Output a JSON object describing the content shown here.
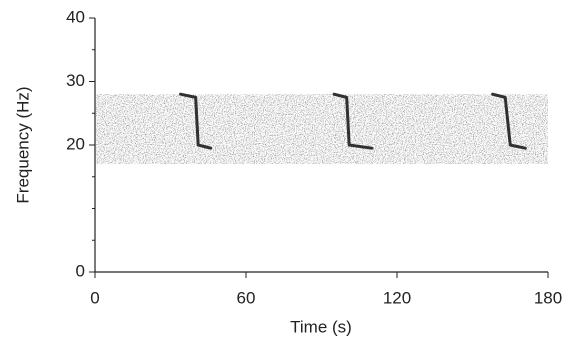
{
  "chart_data": {
    "type": "spectrogram",
    "xlabel": "Time (s)",
    "ylabel": "Frequency (Hz)",
    "xlim": [
      0,
      180
    ],
    "xticks": [
      0,
      60,
      120,
      180
    ],
    "ylim": [
      0,
      40
    ],
    "yticks": [
      0,
      20,
      30,
      40
    ],
    "yticks_minor": [
      5,
      10,
      15,
      25,
      35
    ],
    "band": [
      17,
      28
    ],
    "color": "#111111",
    "calls": [
      {
        "t": [
          34,
          40,
          41,
          46
        ],
        "f": [
          28,
          27.5,
          20,
          19.5
        ]
      },
      {
        "t": [
          95,
          100,
          101,
          110
        ],
        "f": [
          28,
          27.5,
          20,
          19.5
        ]
      },
      {
        "t": [
          158,
          163,
          165,
          171
        ],
        "f": [
          28,
          27.5,
          20,
          19.5
        ]
      }
    ]
  }
}
